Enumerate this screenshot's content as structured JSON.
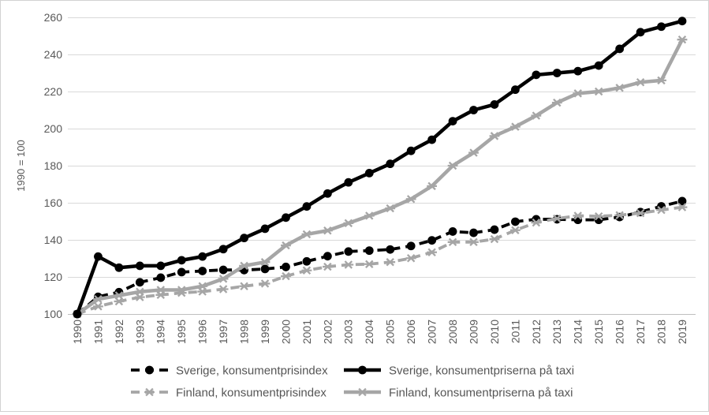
{
  "chart_data": {
    "type": "line",
    "title": "",
    "xlabel": "",
    "ylabel": "1990 = 100",
    "ylim": [
      100,
      260
    ],
    "ytick_step": 20,
    "grid": true,
    "legend_position": "bottom",
    "x": [
      1990,
      1991,
      1992,
      1993,
      1994,
      1995,
      1996,
      1997,
      1998,
      1999,
      2000,
      2001,
      2002,
      2003,
      2004,
      2005,
      2006,
      2007,
      2008,
      2009,
      2010,
      2011,
      2012,
      2013,
      2014,
      2015,
      2016,
      2017,
      2018,
      2019
    ],
    "series": [
      {
        "name": "Sverige, konsumentprisindex",
        "color": "#000000",
        "line": "dashed",
        "marker": "circle",
        "values": [
          100,
          109.3,
          111.8,
          117.1,
          119.6,
          122.6,
          123.2,
          123.8,
          123.7,
          124.3,
          125.4,
          128.4,
          131.2,
          133.7,
          134.2,
          134.8,
          136.7,
          139.7,
          144.5,
          143.8,
          145.5,
          149.8,
          151.1,
          151.1,
          150.8,
          150.8,
          152.3,
          155,
          158.1,
          160.9
        ]
      },
      {
        "name": "Sverige, konsumentpriserna på taxi",
        "color": "#000000",
        "line": "solid",
        "marker": "circle",
        "values": [
          100,
          131,
          125,
          126,
          126,
          129,
          131,
          135,
          141,
          146,
          152,
          158,
          165,
          171,
          176,
          181,
          188,
          194,
          204,
          210,
          213,
          221,
          229,
          230,
          231,
          234,
          243,
          252,
          255,
          258
        ]
      },
      {
        "name": "Finland, konsumentprisindex",
        "color": "#a6a6a6",
        "line": "dashed",
        "marker": "x",
        "values": [
          100,
          104.1,
          106.8,
          109.1,
          110.3,
          111.4,
          112.1,
          113.4,
          115,
          116.4,
          120.4,
          123.5,
          125.5,
          126.6,
          126.9,
          128,
          130.1,
          133.3,
          138.8,
          138.8,
          140.4,
          145.2,
          149.3,
          151.5,
          153,
          152.7,
          153.3,
          154.4,
          156.1,
          157.6
        ]
      },
      {
        "name": "Finland, konsumentpriserna på taxi",
        "color": "#a6a6a6",
        "line": "solid",
        "marker": "x",
        "values": [
          100,
          108,
          110,
          112,
          113,
          113,
          115,
          119,
          126,
          128,
          137,
          143,
          145,
          149,
          153,
          157,
          162,
          169,
          180,
          187,
          196,
          201,
          207,
          214,
          219,
          220,
          222,
          225,
          226,
          248
        ]
      }
    ],
    "colors": {
      "grid": "#d9d9d9",
      "axis_line": "#bfbfbf",
      "tick_text": "#595959",
      "legend_text": "#555555",
      "background": "#ffffff"
    }
  }
}
